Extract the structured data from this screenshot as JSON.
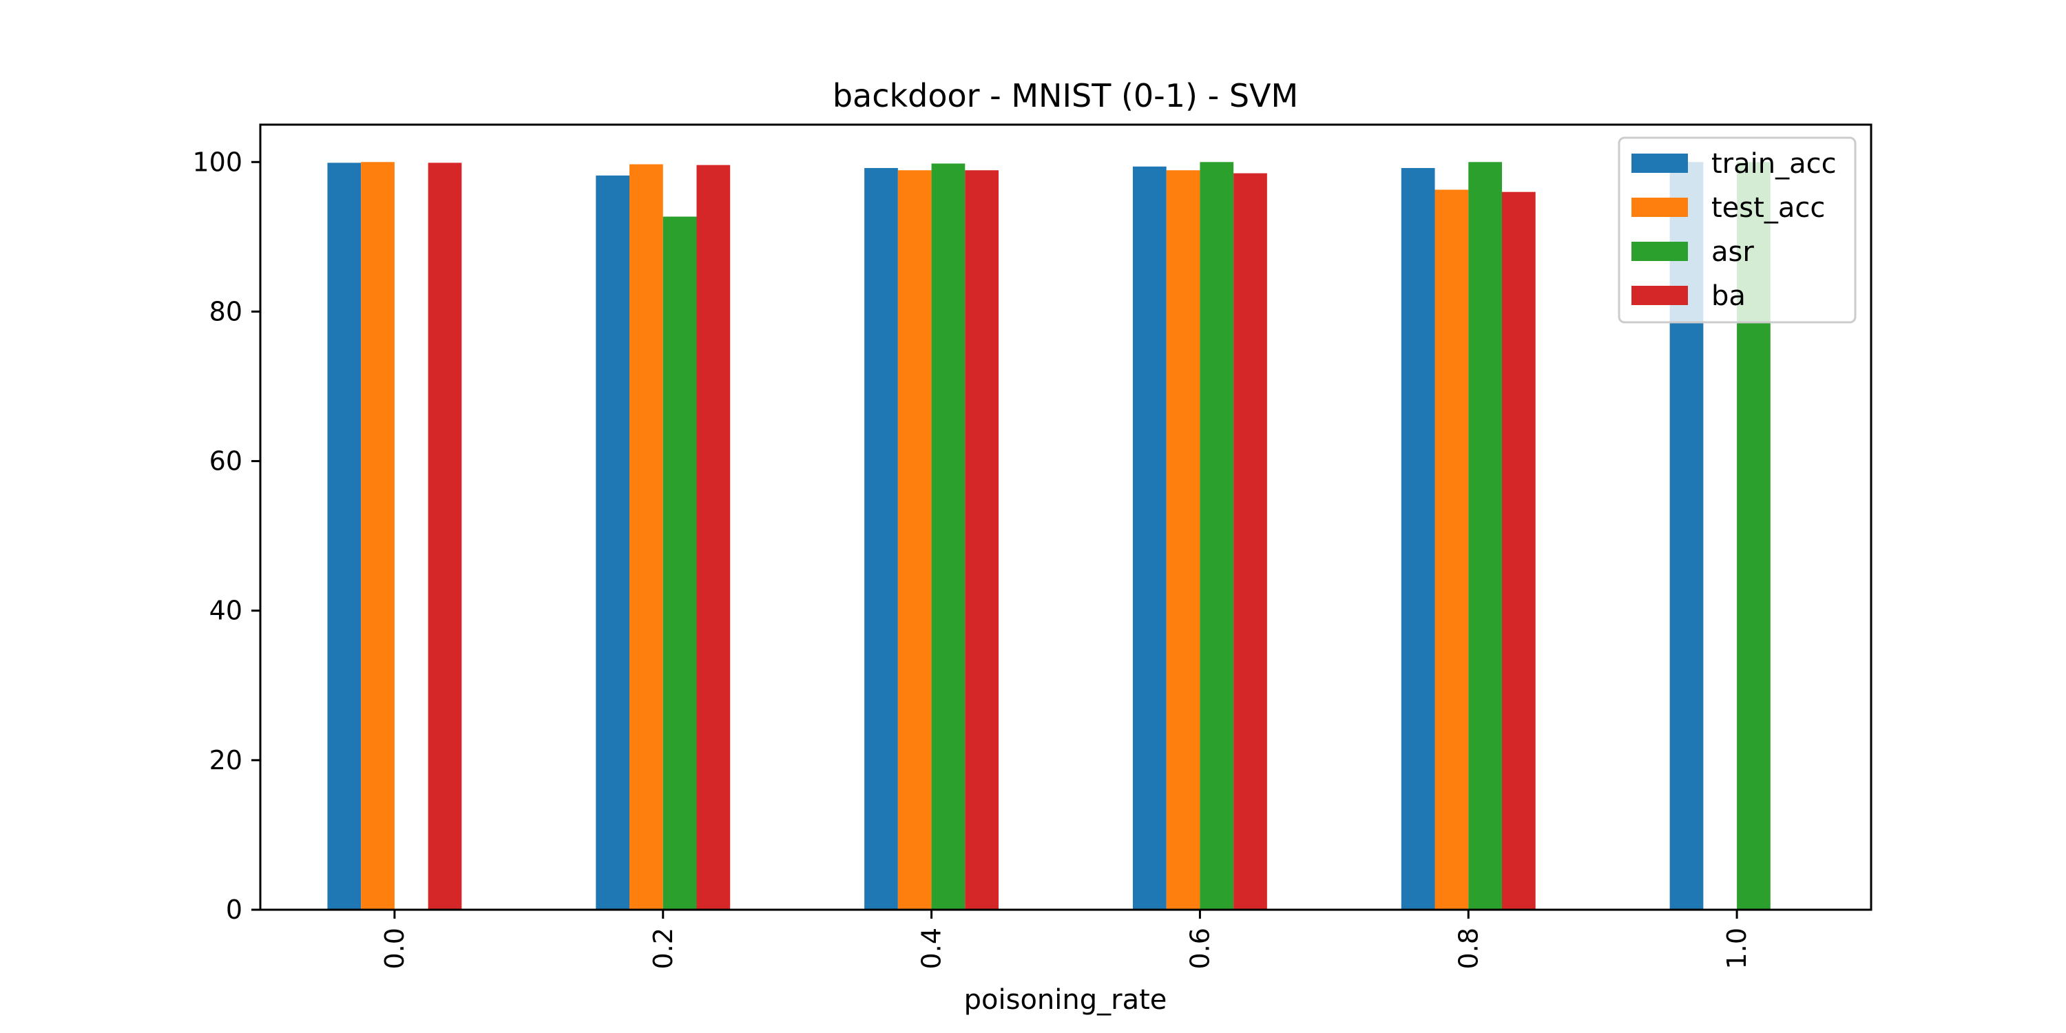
{
  "chart_data": {
    "type": "bar",
    "title": "backdoor - MNIST (0-1) - SVM",
    "xlabel": "poisoning_rate",
    "ylabel": "",
    "categories": [
      "0.0",
      "0.2",
      "0.4",
      "0.6",
      "0.8",
      "1.0"
    ],
    "ylim": [
      0,
      105
    ],
    "yticks": [
      0,
      20,
      40,
      60,
      80,
      100
    ],
    "grid": false,
    "legend_position": "top-right",
    "series": [
      {
        "name": "train_acc",
        "color": "#1f77b4",
        "values": [
          99.9,
          98.2,
          99.2,
          99.4,
          99.2,
          100.0
        ]
      },
      {
        "name": "test_acc",
        "color": "#ff7f0e",
        "values": [
          100.0,
          99.7,
          98.9,
          98.9,
          96.3,
          0
        ]
      },
      {
        "name": "asr",
        "color": "#2ca02c",
        "values": [
          0,
          92.7,
          99.8,
          100.0,
          100.0,
          100.0
        ]
      },
      {
        "name": "ba",
        "color": "#d62728",
        "values": [
          99.9,
          99.6,
          98.9,
          98.5,
          96.0,
          0
        ]
      }
    ]
  }
}
